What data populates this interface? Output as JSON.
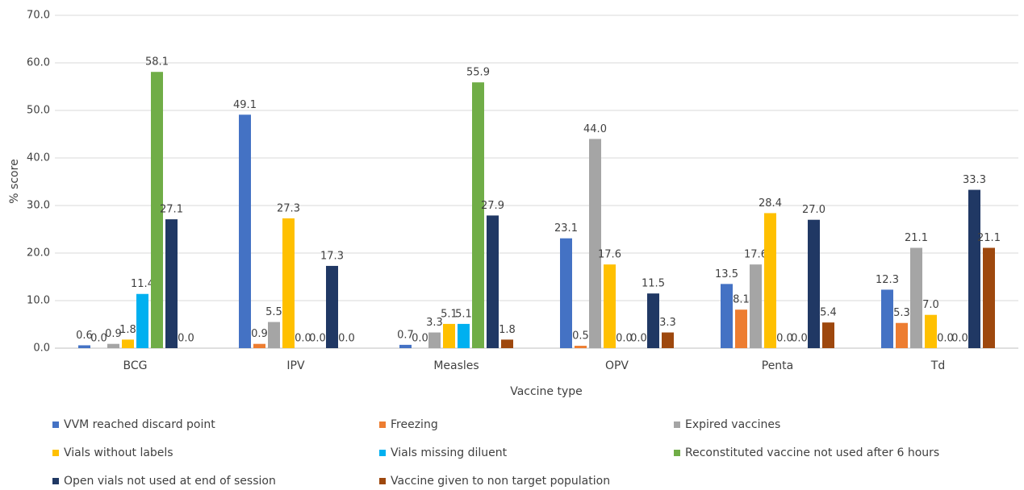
{
  "chart_data": {
    "type": "bar",
    "x_label": "Vaccine type",
    "y_label": "% score",
    "categories": [
      "BCG",
      "IPV",
      "Measles",
      "OPV",
      "Penta",
      "Td"
    ],
    "series": [
      {
        "name": "VVM reached discard point",
        "color": "#4472c4",
        "values": [
          0.6,
          49.1,
          0.7,
          23.1,
          13.5,
          12.3
        ],
        "value_labels": [
          "0.6",
          "49.1",
          "0.7",
          "23.1",
          "13.5",
          "12.3"
        ]
      },
      {
        "name": "Freezing",
        "color": "#ed7d31",
        "values": [
          0,
          0.9,
          0,
          0.5,
          8.1,
          5.3
        ],
        "value_labels": [
          "0.0",
          "0.9",
          "0.0",
          "0.5",
          "8.1",
          "5.3"
        ]
      },
      {
        "name": "Expired vaccines",
        "color": "#a5a5a5",
        "values": [
          0.9,
          5.5,
          3.3,
          44,
          17.6,
          21.1
        ],
        "value_labels": [
          "0.9",
          "5.5",
          "3.3",
          "44.0",
          "17.6",
          "21.1"
        ]
      },
      {
        "name": "Vials without labels",
        "color": "#ffc000",
        "values": [
          1.8,
          27.3,
          5.1,
          17.6,
          28.4,
          7
        ],
        "value_labels": [
          "1.8",
          "27.3",
          "5.1",
          "17.6",
          "28.4",
          "7.0"
        ]
      },
      {
        "name": "Vials missing diluent",
        "color": "#00b0f0",
        "values": [
          11.4,
          0,
          5.1,
          0,
          0,
          0
        ],
        "value_labels": [
          "11.4",
          "0.0",
          "5.1",
          "0.0",
          "0.0",
          "0.0"
        ]
      },
      {
        "name": "Reconstituted vaccine not used after 6 hours",
        "color": "#70ad47",
        "values": [
          58.1,
          0,
          55.9,
          0,
          0,
          0
        ],
        "value_labels": [
          "58.1",
          "0.0",
          "55.9",
          "0.0",
          "0.0",
          "0.0"
        ]
      },
      {
        "name": "Open vials not used at end of session",
        "color": "#203864",
        "values": [
          27.1,
          17.3,
          27.9,
          11.5,
          27,
          33.3
        ],
        "value_labels": [
          "27.1",
          "17.3",
          "27.9",
          "11.5",
          "27.0",
          "33.3"
        ]
      },
      {
        "name": "Vaccine given to non target population",
        "color": "#9e480e",
        "values": [
          0,
          0,
          1.8,
          3.3,
          5.4,
          21.1
        ],
        "value_labels": [
          "0.0",
          "0.0",
          "1.8",
          "3.3",
          "5.4",
          "21.1"
        ]
      }
    ],
    "ylim": [
      0,
      70
    ],
    "yticks": [
      {
        "value": 0,
        "label": "0.0"
      },
      {
        "value": 10,
        "label": "10.0"
      },
      {
        "value": 20,
        "label": "20.0"
      },
      {
        "value": 30,
        "label": "30.0"
      },
      {
        "value": 40,
        "label": "40.0"
      },
      {
        "value": 50,
        "label": "50.0"
      },
      {
        "value": 60,
        "label": "60.0"
      },
      {
        "value": 70,
        "label": "70.0"
      }
    ],
    "grid": true,
    "legend": "bottom"
  }
}
